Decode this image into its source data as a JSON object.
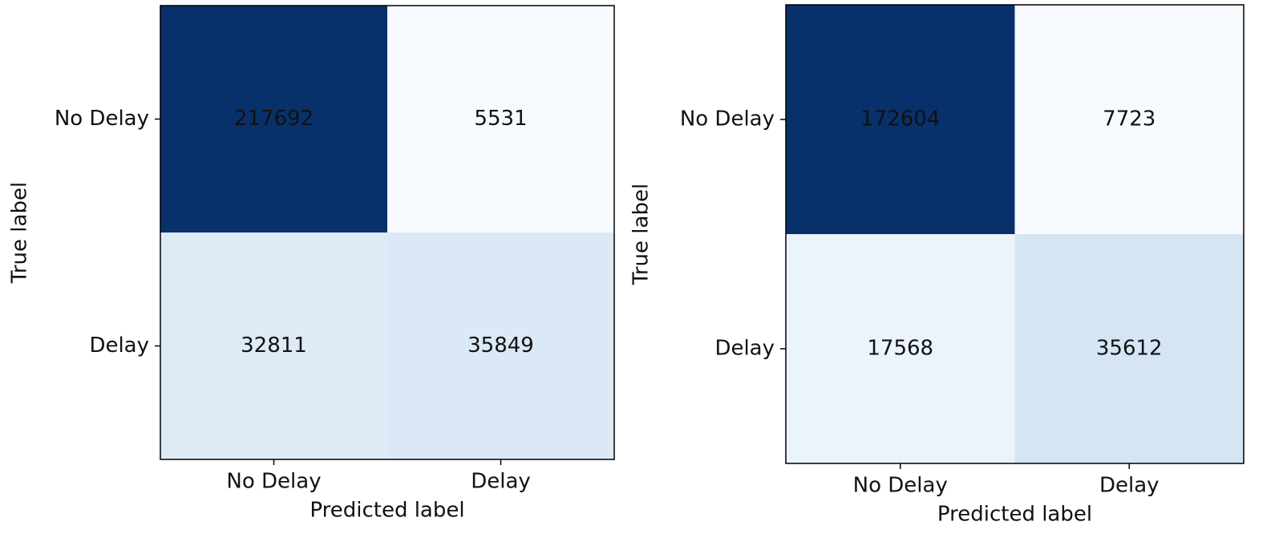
{
  "chart_data": [
    {
      "type": "heatmap",
      "colormap": "Blues",
      "x_label": "Predicted label",
      "y_label": "True label",
      "x_categories": [
        "No Delay",
        "Delay"
      ],
      "y_categories": [
        "No Delay",
        "Delay"
      ],
      "values": [
        [
          217692,
          5531
        ],
        [
          32811,
          35849
        ]
      ]
    },
    {
      "type": "heatmap",
      "colormap": "Blues",
      "x_label": "Predicted label",
      "y_label": "True label",
      "x_categories": [
        "No Delay",
        "Delay"
      ],
      "y_categories": [
        "No Delay",
        "Delay"
      ],
      "values": [
        [
          172604,
          7723
        ],
        [
          17568,
          35612
        ]
      ]
    }
  ]
}
